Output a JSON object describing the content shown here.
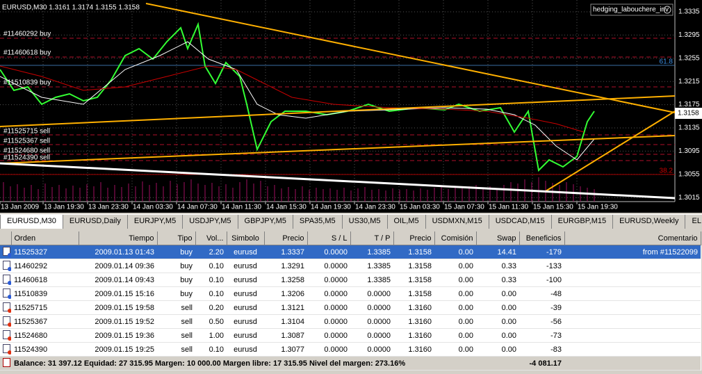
{
  "chart": {
    "header": "EURUSD,M30  1.3161 1.3174 1.3155 1.3158",
    "expert": "hedging_labouchere_inv",
    "price_labels": [
      "1.3335",
      "1.3295",
      "1.3255",
      "1.3215",
      "1.3175",
      "1.3135",
      "1.3095",
      "1.3055",
      "1.3015"
    ],
    "current_price": "1.3158",
    "time_labels": [
      "13 Jan 2009",
      "13 Jan 19:30",
      "13 Jan 23:30",
      "14 Jan 03:30",
      "14 Jan 07:30",
      "14 Jan 11:30",
      "14 Jan 15:30",
      "14 Jan 19:30",
      "14 Jan 23:30",
      "15 Jan 03:30",
      "15 Jan 07:30",
      "15 Jan 11:30",
      "15 Jan 15:30",
      "15 Jan 19:30"
    ],
    "order_labels": [
      "#11460292 buy",
      "#11460618 buy",
      "#11510839 buy",
      "#11525715 sell",
      "#11525367 sell",
      "#11524680 sell",
      "#11524390 sell"
    ],
    "fib_labels": [
      "61.8",
      "38.2"
    ]
  },
  "tabs": [
    "EURUSD,M30",
    "EURUSD,Daily",
    "EURJPY,M5",
    "USDJPY,M5",
    "GBPJPY,M5",
    "SPA35,M5",
    "US30,M5",
    "OIL,M5",
    "USDMXN,M15",
    "USDCAD,M15",
    "EURGBP,M15",
    "EURUSD,Weekly",
    "EL"
  ],
  "table": {
    "columns": [
      "Orden",
      "Tiempo",
      "Tipo",
      "Vol...",
      "Simbolo",
      "Precio",
      "S / L",
      "T / P",
      "Precio",
      "Comisión",
      "Swap",
      "Beneficios",
      "Comentario"
    ],
    "rows": [
      [
        "11525327",
        "2009.01.13 01:43",
        "buy",
        "2.20",
        "eurusd",
        "1.3337",
        "0.0000",
        "1.3385",
        "1.3158",
        "0.00",
        "14.41",
        "-179",
        "from #11522099"
      ],
      [
        "11460292",
        "2009.01.14 09:36",
        "buy",
        "0.10",
        "eurusd",
        "1.3291",
        "0.0000",
        "1.3385",
        "1.3158",
        "0.00",
        "0.33",
        "-133",
        ""
      ],
      [
        "11460618",
        "2009.01.14 09:43",
        "buy",
        "0.10",
        "eurusd",
        "1.3258",
        "0.0000",
        "1.3385",
        "1.3158",
        "0.00",
        "0.33",
        "-100",
        ""
      ],
      [
        "11510839",
        "2009.01.15 15:16",
        "buy",
        "0.10",
        "eurusd",
        "1.3206",
        "0.0000",
        "0.0000",
        "1.3158",
        "0.00",
        "0.00",
        "-48",
        ""
      ],
      [
        "11525715",
        "2009.01.15 19:58",
        "sell",
        "0.20",
        "eurusd",
        "1.3121",
        "0.0000",
        "0.0000",
        "1.3160",
        "0.00",
        "0.00",
        "-39",
        ""
      ],
      [
        "11525367",
        "2009.01.15 19:52",
        "sell",
        "0.50",
        "eurusd",
        "1.3104",
        "0.0000",
        "0.0000",
        "1.3160",
        "0.00",
        "0.00",
        "-56",
        ""
      ],
      [
        "11524680",
        "2009.01.15 19:36",
        "sell",
        "1.00",
        "eurusd",
        "1.3087",
        "0.0000",
        "0.0000",
        "1.3160",
        "0.00",
        "0.00",
        "-73",
        ""
      ],
      [
        "11524390",
        "2009.01.15 19:25",
        "sell",
        "0.10",
        "eurusd",
        "1.3077",
        "0.0000",
        "0.0000",
        "1.3160",
        "0.00",
        "0.00",
        "-83",
        ""
      ]
    ],
    "footer": {
      "summary": "Balance: 31 397.12  Equidad: 27 315.95  Margen: 10 000.00  Margen libre: 17 315.95  Nivel del margen: 273.16%",
      "total": "-4 081.17"
    }
  }
}
